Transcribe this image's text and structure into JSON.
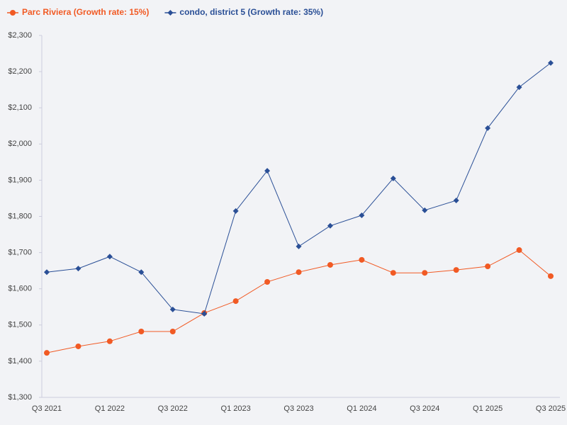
{
  "chart_data": {
    "type": "line",
    "categories": [
      "Q3 2021",
      null,
      "Q1 2022",
      null,
      "Q3 2022",
      null,
      "Q1 2023",
      null,
      "Q3 2023",
      null,
      "Q1 2024",
      null,
      "Q3 2024",
      null,
      "Q1 2025",
      null,
      "Q3 2025"
    ],
    "series": [
      {
        "name": "Parc Riviera (Growth rate: 15%)",
        "color": "#f15a24",
        "marker": "circle",
        "values": [
          1423,
          1441,
          1455,
          1482,
          1482,
          1533,
          1566,
          1619,
          1646,
          1666,
          1680,
          1644,
          1644,
          1652,
          1662,
          1707,
          1635
        ]
      },
      {
        "name": "condo, district 5 (Growth rate: 35%)",
        "color": "#2a4f96",
        "marker": "diamond",
        "values": [
          1646,
          1656,
          1689,
          1646,
          1543,
          1531,
          1815,
          1926,
          1717,
          1774,
          1803,
          1905,
          1817,
          1844,
          2044,
          2157,
          2224
        ]
      }
    ],
    "ylim": [
      1300,
      2300
    ],
    "yticks": [
      {
        "value": 1300,
        "label": "$1,300"
      },
      {
        "value": 1400,
        "label": "$1,400"
      },
      {
        "value": 1500,
        "label": "$1,500"
      },
      {
        "value": 1600,
        "label": "$1,600"
      },
      {
        "value": 1700,
        "label": "$1,700"
      },
      {
        "value": 1800,
        "label": "$1,800"
      },
      {
        "value": 1900,
        "label": "$1,900"
      },
      {
        "value": 2000,
        "label": "$2,000"
      },
      {
        "value": 2100,
        "label": "$2,100"
      },
      {
        "value": 2200,
        "label": "$2,200"
      },
      {
        "value": 2300,
        "label": "$2,300"
      }
    ],
    "grid": false
  }
}
